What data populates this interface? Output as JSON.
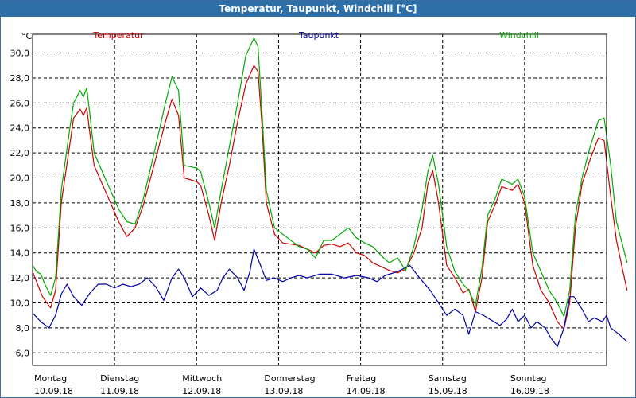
{
  "window": {
    "title": "Temperatur, Taupunkt, Windchill [°C]"
  },
  "chart_data": {
    "type": "line",
    "title": "Temperatur, Taupunkt, Windchill [°C]",
    "ylabel": "°C",
    "ylim": [
      5,
      31.5
    ],
    "xlim": [
      0,
      7
    ],
    "grid": true,
    "yticks": [
      6,
      8,
      10,
      12,
      14,
      16,
      18,
      20,
      22,
      24,
      26,
      28,
      30
    ],
    "ytick_labels": [
      "6,0",
      "8,0",
      "10,0",
      "12,0",
      "14,0",
      "16,0",
      "18,0",
      "20,0",
      "22,0",
      "24,0",
      "26,0",
      "28,0",
      "30,0"
    ],
    "xticks": [
      {
        "day": "Montag",
        "date": "10.09.18"
      },
      {
        "day": "Dienstag",
        "date": "11.09.18"
      },
      {
        "day": "Mittwoch",
        "date": "12.09.18"
      },
      {
        "day": "Donnerstag",
        "date": "13.09.18"
      },
      {
        "day": "Freitag",
        "date": "14.09.18"
      },
      {
        "day": "Samstag",
        "date": "15.09.18"
      },
      {
        "day": "Sonntag",
        "date": "16.09.18"
      }
    ],
    "series": [
      {
        "name": "Temperatur",
        "color": "#cc0000",
        "points": [
          [
            0,
            12.5
          ],
          [
            0.12,
            10.5
          ],
          [
            0.22,
            9.6
          ],
          [
            0.28,
            11.0
          ],
          [
            0.35,
            18.0
          ],
          [
            0.45,
            22.5
          ],
          [
            0.5,
            24.8
          ],
          [
            0.58,
            25.5
          ],
          [
            0.62,
            25.0
          ],
          [
            0.66,
            25.6
          ],
          [
            0.7,
            23.5
          ],
          [
            0.75,
            21.0
          ],
          [
            0.85,
            19.5
          ],
          [
            0.95,
            18.0
          ],
          [
            1.05,
            16.5
          ],
          [
            1.15,
            15.3
          ],
          [
            1.25,
            16.0
          ],
          [
            1.35,
            17.8
          ],
          [
            1.5,
            21.5
          ],
          [
            1.62,
            24.5
          ],
          [
            1.7,
            26.3
          ],
          [
            1.78,
            25.0
          ],
          [
            1.85,
            20.0
          ],
          [
            2.0,
            19.7
          ],
          [
            2.05,
            19.4
          ],
          [
            2.15,
            17.0
          ],
          [
            2.22,
            15.0
          ],
          [
            2.3,
            18.0
          ],
          [
            2.4,
            21.0
          ],
          [
            2.5,
            24.5
          ],
          [
            2.6,
            27.5
          ],
          [
            2.7,
            29.0
          ],
          [
            2.75,
            28.5
          ],
          [
            2.8,
            24.0
          ],
          [
            2.85,
            18.0
          ],
          [
            2.95,
            15.5
          ],
          [
            3.05,
            14.8
          ],
          [
            3.15,
            14.7
          ],
          [
            3.25,
            14.6
          ],
          [
            3.35,
            14.3
          ],
          [
            3.45,
            14.0
          ],
          [
            3.55,
            14.6
          ],
          [
            3.65,
            14.7
          ],
          [
            3.75,
            14.5
          ],
          [
            3.85,
            14.8
          ],
          [
            3.95,
            14.0
          ],
          [
            4.05,
            13.8
          ],
          [
            4.15,
            13.2
          ],
          [
            4.25,
            12.9
          ],
          [
            4.35,
            12.6
          ],
          [
            4.45,
            12.4
          ],
          [
            4.55,
            12.7
          ],
          [
            4.65,
            14.0
          ],
          [
            4.75,
            16.0
          ],
          [
            4.82,
            19.5
          ],
          [
            4.88,
            20.6
          ],
          [
            4.95,
            18.0
          ],
          [
            5.05,
            13.0
          ],
          [
            5.15,
            12.0
          ],
          [
            5.25,
            10.8
          ],
          [
            5.32,
            11.1
          ],
          [
            5.4,
            9.3
          ],
          [
            5.48,
            12.0
          ],
          [
            5.55,
            16.5
          ],
          [
            5.65,
            18.0
          ],
          [
            5.72,
            19.3
          ],
          [
            5.85,
            19.0
          ],
          [
            5.92,
            19.5
          ],
          [
            6.0,
            18.0
          ],
          [
            6.1,
            13.0
          ],
          [
            6.2,
            11.0
          ],
          [
            6.3,
            10.0
          ],
          [
            6.4,
            8.5
          ],
          [
            6.48,
            7.9
          ],
          [
            6.55,
            10.0
          ],
          [
            6.62,
            16.0
          ],
          [
            6.7,
            19.5
          ],
          [
            6.8,
            21.5
          ],
          [
            6.9,
            23.2
          ],
          [
            6.97,
            23.0
          ],
          [
            7.05,
            18.5
          ],
          [
            7.12,
            15.0
          ],
          [
            7.2,
            12.5
          ],
          [
            7.25,
            11.0
          ]
        ]
      },
      {
        "name": "Taupunkt",
        "color": "#0000aa",
        "points": [
          [
            0,
            9.2
          ],
          [
            0.1,
            8.5
          ],
          [
            0.2,
            8.0
          ],
          [
            0.28,
            9.0
          ],
          [
            0.35,
            10.7
          ],
          [
            0.42,
            11.5
          ],
          [
            0.5,
            10.5
          ],
          [
            0.6,
            9.8
          ],
          [
            0.7,
            10.8
          ],
          [
            0.8,
            11.5
          ],
          [
            0.9,
            11.5
          ],
          [
            1.0,
            11.2
          ],
          [
            1.1,
            11.5
          ],
          [
            1.2,
            11.3
          ],
          [
            1.3,
            11.5
          ],
          [
            1.4,
            12.0
          ],
          [
            1.5,
            11.3
          ],
          [
            1.6,
            10.2
          ],
          [
            1.7,
            12.0
          ],
          [
            1.78,
            12.7
          ],
          [
            1.85,
            12.0
          ],
          [
            1.95,
            10.5
          ],
          [
            2.05,
            11.2
          ],
          [
            2.15,
            10.6
          ],
          [
            2.25,
            11.0
          ],
          [
            2.32,
            12.0
          ],
          [
            2.4,
            12.7
          ],
          [
            2.5,
            12.0
          ],
          [
            2.58,
            11.0
          ],
          [
            2.65,
            12.5
          ],
          [
            2.7,
            14.3
          ],
          [
            2.78,
            13.0
          ],
          [
            2.85,
            11.8
          ],
          [
            2.95,
            12.0
          ],
          [
            3.05,
            11.7
          ],
          [
            3.15,
            12.0
          ],
          [
            3.25,
            12.2
          ],
          [
            3.35,
            12.0
          ],
          [
            3.5,
            12.3
          ],
          [
            3.65,
            12.3
          ],
          [
            3.8,
            12.0
          ],
          [
            3.95,
            12.2
          ],
          [
            4.1,
            12.0
          ],
          [
            4.2,
            11.7
          ],
          [
            4.3,
            12.2
          ],
          [
            4.45,
            12.5
          ],
          [
            4.6,
            13.0
          ],
          [
            4.72,
            12.0
          ],
          [
            4.85,
            11.0
          ],
          [
            4.95,
            10.0
          ],
          [
            5.05,
            9.0
          ],
          [
            5.15,
            9.5
          ],
          [
            5.25,
            9.0
          ],
          [
            5.32,
            7.5
          ],
          [
            5.4,
            9.3
          ],
          [
            5.5,
            9.0
          ],
          [
            5.6,
            8.6
          ],
          [
            5.7,
            8.2
          ],
          [
            5.78,
            8.7
          ],
          [
            5.85,
            9.5
          ],
          [
            5.92,
            8.5
          ],
          [
            6.0,
            9.0
          ],
          [
            6.08,
            8.0
          ],
          [
            6.15,
            8.5
          ],
          [
            6.25,
            8.0
          ],
          [
            6.32,
            7.2
          ],
          [
            6.4,
            6.5
          ],
          [
            6.48,
            8.0
          ],
          [
            6.55,
            10.5
          ],
          [
            6.6,
            10.5
          ],
          [
            6.7,
            9.5
          ],
          [
            6.78,
            8.5
          ],
          [
            6.85,
            8.8
          ],
          [
            6.95,
            8.5
          ],
          [
            7.0,
            9.0
          ],
          [
            7.05,
            8.0
          ],
          [
            7.15,
            7.5
          ],
          [
            7.25,
            6.9
          ]
        ]
      },
      {
        "name": "Windchill",
        "color": "#00aa00",
        "points": [
          [
            0,
            13.0
          ],
          [
            0.05,
            12.5
          ],
          [
            0.1,
            12.3
          ],
          [
            0.15,
            11.5
          ],
          [
            0.22,
            10.6
          ],
          [
            0.28,
            12.0
          ],
          [
            0.35,
            19.0
          ],
          [
            0.45,
            23.8
          ],
          [
            0.5,
            26.0
          ],
          [
            0.58,
            27.0
          ],
          [
            0.62,
            26.5
          ],
          [
            0.66,
            27.2
          ],
          [
            0.7,
            25.0
          ],
          [
            0.75,
            22.0
          ],
          [
            0.85,
            20.5
          ],
          [
            0.95,
            19.0
          ],
          [
            1.05,
            17.5
          ],
          [
            1.15,
            16.5
          ],
          [
            1.25,
            16.3
          ],
          [
            1.35,
            18.3
          ],
          [
            1.5,
            22.5
          ],
          [
            1.62,
            26.0
          ],
          [
            1.7,
            28.1
          ],
          [
            1.78,
            27.0
          ],
          [
            1.85,
            21.0
          ],
          [
            2.0,
            20.8
          ],
          [
            2.05,
            20.5
          ],
          [
            2.15,
            18.0
          ],
          [
            2.22,
            16.0
          ],
          [
            2.3,
            19.0
          ],
          [
            2.4,
            22.5
          ],
          [
            2.5,
            26.0
          ],
          [
            2.6,
            29.8
          ],
          [
            2.7,
            31.2
          ],
          [
            2.75,
            30.5
          ],
          [
            2.8,
            25.0
          ],
          [
            2.85,
            19.0
          ],
          [
            2.95,
            16.0
          ],
          [
            3.05,
            15.5
          ],
          [
            3.15,
            15.0
          ],
          [
            3.25,
            14.5
          ],
          [
            3.35,
            14.3
          ],
          [
            3.45,
            13.6
          ],
          [
            3.55,
            15.0
          ],
          [
            3.65,
            15.0
          ],
          [
            3.75,
            15.5
          ],
          [
            3.85,
            16.0
          ],
          [
            3.95,
            15.2
          ],
          [
            4.05,
            14.8
          ],
          [
            4.15,
            14.5
          ],
          [
            4.25,
            13.8
          ],
          [
            4.35,
            13.2
          ],
          [
            4.45,
            13.6
          ],
          [
            4.55,
            12.6
          ],
          [
            4.65,
            14.5
          ],
          [
            4.75,
            17.5
          ],
          [
            4.82,
            20.5
          ],
          [
            4.88,
            21.8
          ],
          [
            4.95,
            19.5
          ],
          [
            5.05,
            14.5
          ],
          [
            5.15,
            12.5
          ],
          [
            5.25,
            11.5
          ],
          [
            5.32,
            11.0
          ],
          [
            5.4,
            9.8
          ],
          [
            5.48,
            12.8
          ],
          [
            5.55,
            17.0
          ],
          [
            5.65,
            18.5
          ],
          [
            5.72,
            19.9
          ],
          [
            5.85,
            19.5
          ],
          [
            5.92,
            19.9
          ],
          [
            6.0,
            18.5
          ],
          [
            6.1,
            14.0
          ],
          [
            6.2,
            12.5
          ],
          [
            6.3,
            11.0
          ],
          [
            6.4,
            10.0
          ],
          [
            6.48,
            8.9
          ],
          [
            6.55,
            11.0
          ],
          [
            6.62,
            17.0
          ],
          [
            6.7,
            20.0
          ],
          [
            6.8,
            22.5
          ],
          [
            6.9,
            24.6
          ],
          [
            6.97,
            24.8
          ],
          [
            7.05,
            21.0
          ],
          [
            7.12,
            16.5
          ],
          [
            7.2,
            14.5
          ],
          [
            7.25,
            13.2
          ]
        ]
      }
    ]
  }
}
